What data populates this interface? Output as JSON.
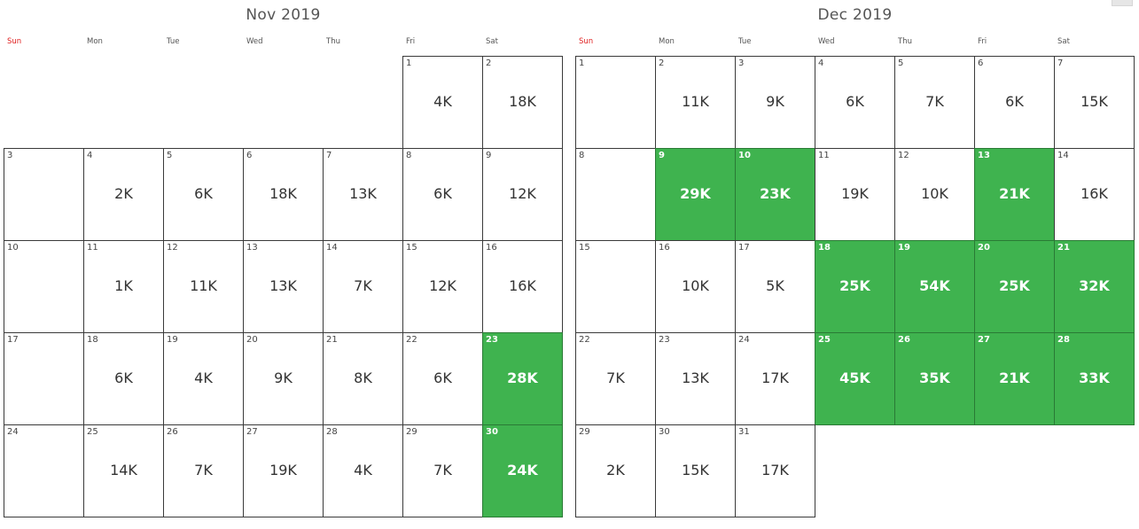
{
  "weekdays": [
    "Sun",
    "Mon",
    "Tue",
    "Wed",
    "Thu",
    "Fri",
    "Sat"
  ],
  "colors": {
    "highlight": "#3fb34f",
    "sunday": "#e02020",
    "border": "#3a3a3a"
  },
  "months": [
    {
      "title": "Nov 2019",
      "first_weekday": 5,
      "days": [
        {
          "d": "1",
          "v": "4K"
        },
        {
          "d": "2",
          "v": "18K"
        },
        {
          "d": "3",
          "v": ""
        },
        {
          "d": "4",
          "v": "2K"
        },
        {
          "d": "5",
          "v": "6K"
        },
        {
          "d": "6",
          "v": "18K"
        },
        {
          "d": "7",
          "v": "13K"
        },
        {
          "d": "8",
          "v": "6K"
        },
        {
          "d": "9",
          "v": "12K"
        },
        {
          "d": "10",
          "v": ""
        },
        {
          "d": "11",
          "v": "1K"
        },
        {
          "d": "12",
          "v": "11K"
        },
        {
          "d": "13",
          "v": "13K"
        },
        {
          "d": "14",
          "v": "7K"
        },
        {
          "d": "15",
          "v": "12K"
        },
        {
          "d": "16",
          "v": "16K"
        },
        {
          "d": "17",
          "v": ""
        },
        {
          "d": "18",
          "v": "6K"
        },
        {
          "d": "19",
          "v": "4K"
        },
        {
          "d": "20",
          "v": "9K"
        },
        {
          "d": "21",
          "v": "8K"
        },
        {
          "d": "22",
          "v": "6K"
        },
        {
          "d": "23",
          "v": "28K",
          "hl": true
        },
        {
          "d": "24",
          "v": ""
        },
        {
          "d": "25",
          "v": "14K"
        },
        {
          "d": "26",
          "v": "7K"
        },
        {
          "d": "27",
          "v": "19K"
        },
        {
          "d": "28",
          "v": "4K"
        },
        {
          "d": "29",
          "v": "7K"
        },
        {
          "d": "30",
          "v": "24K",
          "hl": true
        }
      ]
    },
    {
      "title": "Dec 2019",
      "first_weekday": 0,
      "days": [
        {
          "d": "1",
          "v": ""
        },
        {
          "d": "2",
          "v": "11K"
        },
        {
          "d": "3",
          "v": "9K"
        },
        {
          "d": "4",
          "v": "6K"
        },
        {
          "d": "5",
          "v": "7K"
        },
        {
          "d": "6",
          "v": "6K"
        },
        {
          "d": "7",
          "v": "15K"
        },
        {
          "d": "8",
          "v": ""
        },
        {
          "d": "9",
          "v": "29K",
          "hl": true
        },
        {
          "d": "10",
          "v": "23K",
          "hl": true
        },
        {
          "d": "11",
          "v": "19K"
        },
        {
          "d": "12",
          "v": "10K"
        },
        {
          "d": "13",
          "v": "21K",
          "hl": true
        },
        {
          "d": "14",
          "v": "16K"
        },
        {
          "d": "15",
          "v": ""
        },
        {
          "d": "16",
          "v": "10K"
        },
        {
          "d": "17",
          "v": "5K"
        },
        {
          "d": "18",
          "v": "25K",
          "hl": true
        },
        {
          "d": "19",
          "v": "54K",
          "hl": true
        },
        {
          "d": "20",
          "v": "25K",
          "hl": true
        },
        {
          "d": "21",
          "v": "32K",
          "hl": true
        },
        {
          "d": "22",
          "v": "7K"
        },
        {
          "d": "23",
          "v": "13K"
        },
        {
          "d": "24",
          "v": "17K"
        },
        {
          "d": "25",
          "v": "45K",
          "hl": true
        },
        {
          "d": "26",
          "v": "35K",
          "hl": true
        },
        {
          "d": "27",
          "v": "21K",
          "hl": true
        },
        {
          "d": "28",
          "v": "33K",
          "hl": true
        },
        {
          "d": "29",
          "v": "2K"
        },
        {
          "d": "30",
          "v": "15K"
        },
        {
          "d": "31",
          "v": "17K"
        }
      ]
    }
  ]
}
